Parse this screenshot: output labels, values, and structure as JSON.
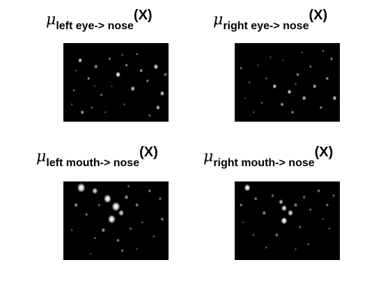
{
  "panels": [
    {
      "symbol": "μ",
      "subscript": "left eye-> nose",
      "argument": "(X)",
      "spots": [
        [
          0.16,
          0.22,
          3.0,
          0.85
        ],
        [
          0.24,
          0.45,
          2.2,
          0.6
        ],
        [
          0.31,
          0.3,
          2.6,
          0.7
        ],
        [
          0.44,
          0.2,
          2.0,
          0.55
        ],
        [
          0.52,
          0.4,
          3.6,
          0.95
        ],
        [
          0.6,
          0.28,
          2.2,
          0.6
        ],
        [
          0.66,
          0.58,
          3.2,
          0.8
        ],
        [
          0.74,
          0.35,
          2.4,
          0.7
        ],
        [
          0.8,
          0.48,
          2.2,
          0.55
        ],
        [
          0.88,
          0.3,
          3.4,
          0.85
        ],
        [
          0.94,
          0.64,
          3.2,
          0.8
        ],
        [
          0.9,
          0.82,
          3.0,
          0.75
        ],
        [
          0.18,
          0.88,
          2.6,
          0.7
        ],
        [
          0.27,
          0.82,
          1.8,
          0.45
        ],
        [
          0.36,
          0.66,
          2.0,
          0.5
        ],
        [
          0.4,
          0.88,
          1.6,
          0.4
        ],
        [
          0.1,
          0.6,
          1.8,
          0.5
        ],
        [
          0.12,
          0.35,
          1.6,
          0.4
        ],
        [
          0.56,
          0.15,
          1.6,
          0.45
        ],
        [
          0.7,
          0.14,
          1.8,
          0.5
        ],
        [
          0.97,
          0.4,
          2.4,
          0.6
        ],
        [
          0.58,
          0.78,
          1.6,
          0.4
        ],
        [
          0.82,
          0.92,
          2.0,
          0.5
        ],
        [
          0.08,
          0.78,
          1.6,
          0.4
        ],
        [
          0.46,
          0.55,
          1.4,
          0.35
        ],
        [
          0.3,
          0.55,
          1.4,
          0.35
        ]
      ]
    },
    {
      "symbol": "μ",
      "subscript": "right eye-> nose",
      "argument": "(X)",
      "spots": [
        [
          0.06,
          0.32,
          1.8,
          0.55
        ],
        [
          0.14,
          0.5,
          1.6,
          0.4
        ],
        [
          0.22,
          0.28,
          1.4,
          0.35
        ],
        [
          0.3,
          0.45,
          1.6,
          0.45
        ],
        [
          0.38,
          0.55,
          3.0,
          0.8
        ],
        [
          0.45,
          0.78,
          2.4,
          0.7
        ],
        [
          0.52,
          0.62,
          3.0,
          0.8
        ],
        [
          0.55,
          0.88,
          2.2,
          0.6
        ],
        [
          0.6,
          0.4,
          2.4,
          0.6
        ],
        [
          0.66,
          0.7,
          3.0,
          0.75
        ],
        [
          0.72,
          0.3,
          2.0,
          0.5
        ],
        [
          0.76,
          0.55,
          2.8,
          0.7
        ],
        [
          0.82,
          0.82,
          2.2,
          0.55
        ],
        [
          0.88,
          0.45,
          2.4,
          0.6
        ],
        [
          0.92,
          0.2,
          2.2,
          0.55
        ],
        [
          0.95,
          0.7,
          3.0,
          0.8
        ],
        [
          0.34,
          0.18,
          1.6,
          0.4
        ],
        [
          0.46,
          0.22,
          1.4,
          0.35
        ],
        [
          0.26,
          0.76,
          1.8,
          0.45
        ],
        [
          0.18,
          0.88,
          1.6,
          0.4
        ],
        [
          0.64,
          0.12,
          1.6,
          0.4
        ],
        [
          0.84,
          0.1,
          1.8,
          0.5
        ],
        [
          0.1,
          0.7,
          1.4,
          0.35
        ],
        [
          0.58,
          0.52,
          1.6,
          0.4
        ]
      ]
    },
    {
      "symbol": "μ",
      "subscript": "left mouth-> nose",
      "argument": "(X)",
      "spots": [
        [
          0.17,
          0.08,
          6.0,
          1.0
        ],
        [
          0.3,
          0.12,
          4.0,
          0.85
        ],
        [
          0.42,
          0.22,
          5.5,
          1.0
        ],
        [
          0.5,
          0.32,
          6.0,
          1.0
        ],
        [
          0.55,
          0.4,
          4.0,
          0.8
        ],
        [
          0.46,
          0.48,
          5.5,
          1.0
        ],
        [
          0.38,
          0.62,
          2.8,
          0.65
        ],
        [
          0.6,
          0.2,
          3.0,
          0.6
        ],
        [
          0.7,
          0.3,
          2.6,
          0.55
        ],
        [
          0.12,
          0.3,
          2.8,
          0.6
        ],
        [
          0.22,
          0.42,
          2.2,
          0.5
        ],
        [
          0.3,
          0.72,
          1.8,
          0.45
        ],
        [
          0.52,
          0.75,
          2.4,
          0.55
        ],
        [
          0.56,
          0.88,
          2.2,
          0.5
        ],
        [
          0.64,
          0.6,
          2.0,
          0.45
        ],
        [
          0.75,
          0.52,
          1.8,
          0.4
        ],
        [
          0.82,
          0.12,
          2.4,
          0.5
        ],
        [
          0.92,
          0.22,
          2.2,
          0.5
        ],
        [
          0.94,
          0.48,
          2.4,
          0.55
        ],
        [
          0.86,
          0.7,
          1.8,
          0.4
        ],
        [
          0.08,
          0.62,
          1.8,
          0.4
        ],
        [
          0.26,
          0.92,
          1.6,
          0.35
        ],
        [
          0.7,
          0.86,
          1.6,
          0.35
        ],
        [
          0.34,
          0.3,
          2.0,
          0.5
        ],
        [
          0.62,
          0.06,
          2.0,
          0.45
        ]
      ]
    },
    {
      "symbol": "μ",
      "subscript": "right mouth-> nose",
      "argument": "(X)",
      "spots": [
        [
          0.12,
          0.08,
          4.5,
          1.0
        ],
        [
          0.06,
          0.3,
          2.2,
          0.55
        ],
        [
          0.2,
          0.22,
          2.4,
          0.55
        ],
        [
          0.28,
          0.4,
          2.6,
          0.6
        ],
        [
          0.36,
          0.18,
          2.2,
          0.5
        ],
        [
          0.44,
          0.26,
          3.2,
          0.75
        ],
        [
          0.47,
          0.34,
          4.0,
          0.9
        ],
        [
          0.53,
          0.4,
          4.0,
          0.85
        ],
        [
          0.47,
          0.5,
          4.5,
          1.0
        ],
        [
          0.58,
          0.3,
          2.6,
          0.6
        ],
        [
          0.66,
          0.2,
          2.2,
          0.5
        ],
        [
          0.72,
          0.36,
          2.0,
          0.45
        ],
        [
          0.8,
          0.12,
          2.4,
          0.5
        ],
        [
          0.88,
          0.3,
          2.2,
          0.5
        ],
        [
          0.94,
          0.18,
          2.0,
          0.45
        ],
        [
          0.9,
          0.6,
          1.8,
          0.4
        ],
        [
          0.62,
          0.58,
          2.0,
          0.45
        ],
        [
          0.4,
          0.68,
          2.4,
          0.55
        ],
        [
          0.3,
          0.84,
          1.8,
          0.4
        ],
        [
          0.18,
          0.68,
          1.8,
          0.4
        ],
        [
          0.08,
          0.52,
          1.6,
          0.35
        ],
        [
          0.7,
          0.8,
          1.8,
          0.4
        ],
        [
          0.58,
          0.86,
          1.6,
          0.35
        ],
        [
          0.84,
          0.48,
          1.6,
          0.35
        ]
      ]
    }
  ]
}
